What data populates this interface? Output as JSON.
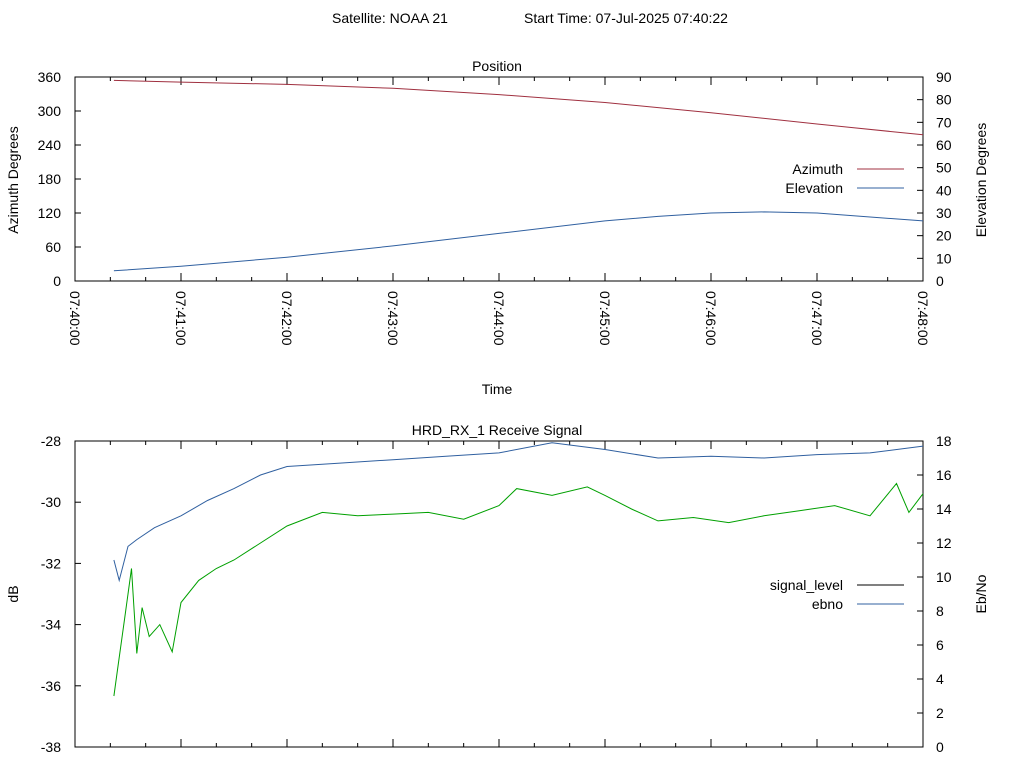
{
  "header": {
    "satellite": "Satellite: NOAA 21",
    "start_time": "Start Time: 07-Jul-2025 07:40:22"
  },
  "chart_data": [
    {
      "type": "line",
      "title": "Position",
      "xlabel": "Time",
      "ylabel": "Azimuth Degrees",
      "y2label": "Elevation Degrees",
      "xlim": [
        "07:40:00",
        "07:48:00"
      ],
      "ylim": [
        0,
        360
      ],
      "y2lim": [
        0,
        90
      ],
      "x_ticks": [
        "07:40:00",
        "07:41:00",
        "07:42:00",
        "07:43:00",
        "07:44:00",
        "07:45:00",
        "07:46:00",
        "07:47:00",
        "07:48:00"
      ],
      "y_ticks": [
        "0",
        "60",
        "120",
        "180",
        "240",
        "300",
        "360"
      ],
      "y2_ticks": [
        "0",
        "10",
        "20",
        "30",
        "40",
        "50",
        "60",
        "70",
        "80",
        "90"
      ],
      "legend_position": "right",
      "series": [
        {
          "name": "Azimuth",
          "axis": "y",
          "color": "#a03040",
          "x": [
            "07:40:22",
            "07:41:00",
            "07:42:00",
            "07:43:00",
            "07:44:00",
            "07:45:00",
            "07:46:00",
            "07:47:00",
            "07:48:00"
          ],
          "values": [
            354,
            351,
            347,
            340,
            329,
            315,
            297,
            277,
            258
          ]
        },
        {
          "name": "Elevation",
          "axis": "y2",
          "color": "#3060a0",
          "x": [
            "07:40:22",
            "07:41:00",
            "07:42:00",
            "07:43:00",
            "07:44:00",
            "07:45:00",
            "07:45:30",
            "07:46:00",
            "07:46:30",
            "07:47:00",
            "07:48:00"
          ],
          "values": [
            4.5,
            6.5,
            10.5,
            15.5,
            21,
            26.5,
            28.5,
            30,
            30.5,
            30,
            26.5
          ]
        }
      ]
    },
    {
      "type": "line",
      "title": "HRD_RX_1 Receive Signal",
      "xlabel": "",
      "ylabel": "dB",
      "y2label": "Eb/No",
      "xlim": [
        "07:40:00",
        "07:48:00"
      ],
      "ylim": [
        -38,
        -28
      ],
      "y2lim": [
        0,
        18
      ],
      "y_ticks": [
        "-38",
        "-36",
        "-34",
        "-32",
        "-30",
        "-28"
      ],
      "y2_ticks": [
        "0",
        "2",
        "4",
        "6",
        "8",
        "10",
        "12",
        "14",
        "16",
        "18"
      ],
      "legend_position": "right",
      "series": [
        {
          "name": "signal_level",
          "axis": "y",
          "color": "#000000",
          "x": [],
          "values": []
        },
        {
          "name": "ebno",
          "axis": "y2",
          "color": "#3060a0",
          "x": [
            "07:40:22",
            "07:40:25",
            "07:40:30",
            "07:40:35",
            "07:40:45",
            "07:41:00",
            "07:41:15",
            "07:41:30",
            "07:41:45",
            "07:42:00",
            "07:42:30",
            "07:43:00",
            "07:43:30",
            "07:44:00",
            "07:44:30",
            "07:45:00",
            "07:45:30",
            "07:46:00",
            "07:46:30",
            "07:47:00",
            "07:47:30",
            "07:48:00"
          ],
          "values": [
            11,
            9.8,
            11.8,
            12.2,
            12.9,
            13.6,
            14.5,
            15.2,
            16.0,
            16.5,
            16.7,
            16.9,
            17.1,
            17.3,
            17.9,
            17.5,
            17.0,
            17.1,
            17.0,
            17.2,
            17.3,
            17.7
          ]
        },
        {
          "name": "",
          "axis": "y2",
          "color": "#00a000",
          "x": [
            "07:40:22",
            "07:40:24",
            "07:40:28",
            "07:40:32",
            "07:40:35",
            "07:40:38",
            "07:40:42",
            "07:40:48",
            "07:40:55",
            "07:41:00",
            "07:41:10",
            "07:41:20",
            "07:41:30",
            "07:41:45",
            "07:42:00",
            "07:42:20",
            "07:42:40",
            "07:43:00",
            "07:43:20",
            "07:43:40",
            "07:44:00",
            "07:44:10",
            "07:44:30",
            "07:44:50",
            "07:45:00",
            "07:45:15",
            "07:45:30",
            "07:45:50",
            "07:46:10",
            "07:46:30",
            "07:46:50",
            "07:47:10",
            "07:47:30",
            "07:47:45",
            "07:47:52",
            "07:48:00"
          ],
          "values": [
            3.0,
            4.5,
            7.5,
            10.5,
            5.5,
            8.2,
            6.5,
            7.2,
            5.6,
            8.5,
            9.8,
            10.5,
            11.0,
            12.0,
            13.0,
            13.8,
            13.6,
            13.7,
            13.8,
            13.4,
            14.2,
            15.2,
            14.8,
            15.3,
            14.8,
            14.0,
            13.3,
            13.5,
            13.2,
            13.6,
            13.9,
            14.2,
            13.6,
            15.5,
            13.8,
            14.9
          ]
        }
      ]
    }
  ]
}
